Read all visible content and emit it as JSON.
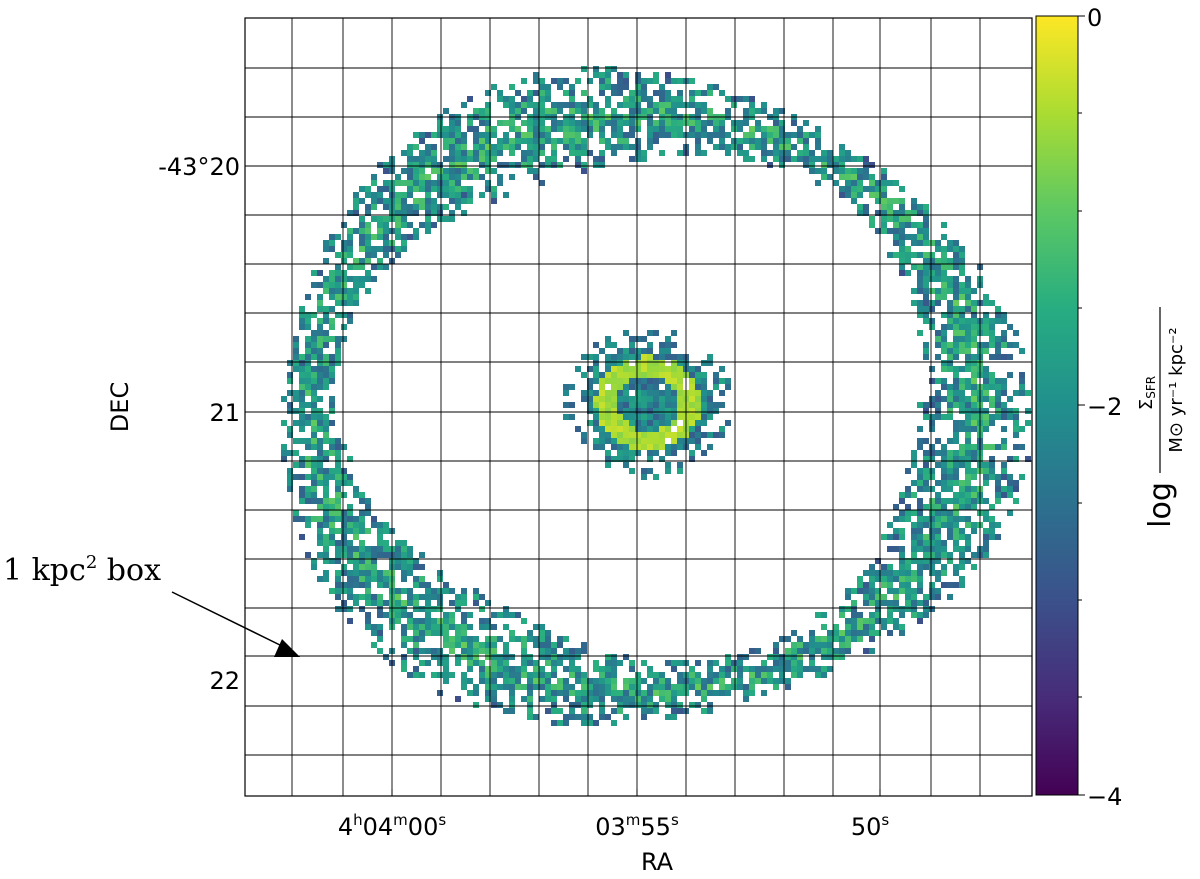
{
  "chart_data": {
    "type": "heatmap",
    "title": "",
    "xlabel": "RA",
    "ylabel": "DEC",
    "x_ticks": [
      {
        "label": "4h04m00s",
        "h": "4",
        "hs": "h",
        "m": "04",
        "ms": "m",
        "s": "00",
        "ss": "s",
        "ra_sec_offset": 0
      },
      {
        "label": "03m55s",
        "m": "03",
        "ms": "m",
        "s": "55",
        "ss": "s",
        "ra_sec_offset": -5
      },
      {
        "label": "50s",
        "s": "50",
        "ss": "s",
        "ra_sec_offset": -10
      }
    ],
    "y_ticks": [
      {
        "label": "-43°20",
        "dec_arcmin": 20
      },
      {
        "label": "21",
        "dec_arcmin": 21
      },
      {
        "label": "22",
        "dec_arcmin": 22
      }
    ],
    "colorbar": {
      "label": "log Σ_SFR / M⊙ yr⁻¹ kpc⁻²",
      "label_parts": {
        "log": "log",
        "numerator": "Σ",
        "numerator_sub": "SFR",
        "denominator": "M⊙ yr⁻¹ kpc⁻²"
      },
      "min": -4,
      "max": 0,
      "tick_labels": [
        "0",
        "−2",
        "−4"
      ],
      "colormap": "viridis"
    },
    "grid": true,
    "grid_description": "1 kpc² box grid overlaid",
    "annotation": {
      "text": "1 kpc² box",
      "base": "1 kpc",
      "sup": "2",
      "suffix": " box"
    },
    "features": [
      {
        "name": "nuclear ring",
        "log_sigma_sfr": -0.5
      },
      {
        "name": "outer ring",
        "log_sigma_sfr": -2.3
      }
    ]
  }
}
